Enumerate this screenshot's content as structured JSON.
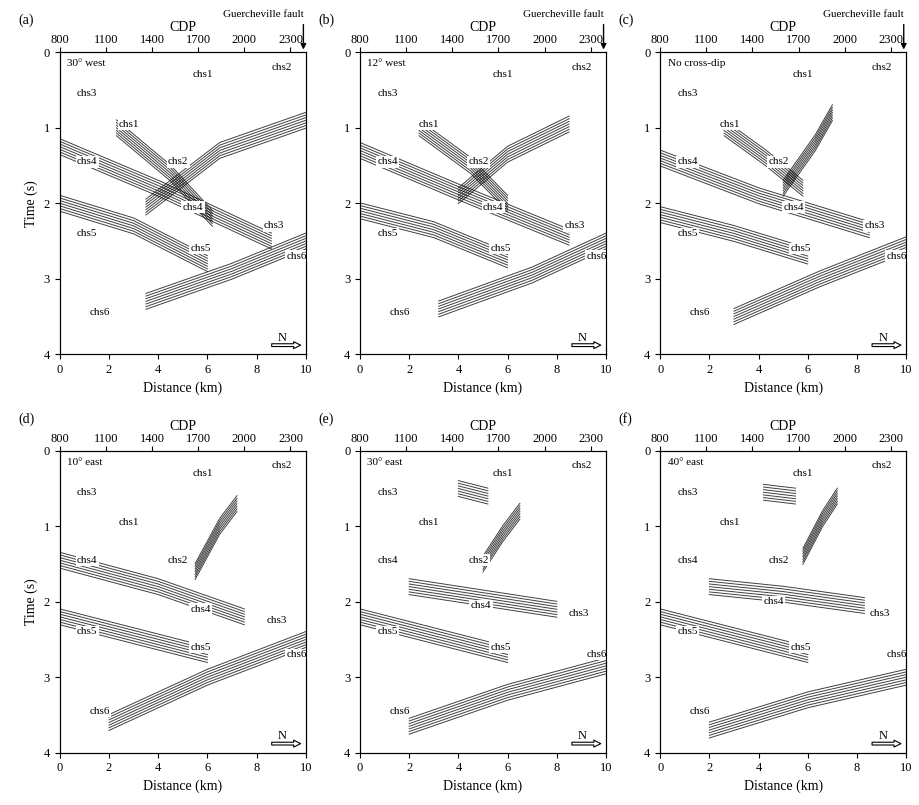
{
  "chart_data": [
    {
      "type": "line",
      "title": "(a)",
      "xlabel": "Distance (km)",
      "ylabel": "Time (s)",
      "x2label": "CDP",
      "xlim": [
        0,
        10
      ],
      "xticks": [
        0,
        2,
        4,
        6,
        8,
        10
      ],
      "ylim": [
        4,
        0
      ],
      "yticks": [
        0,
        1,
        2,
        3,
        4
      ],
      "x2lim": [
        800,
        2400
      ],
      "x2ticks": [
        800,
        1100,
        1400,
        1700,
        2000,
        2300
      ],
      "color": "#000000",
      "north_arrow": "N",
      "annotations": [
        {
          "text": "30° west",
          "x": 0.3,
          "y": 0.15
        },
        {
          "text": "Guercheville fault",
          "x": 9.9,
          "y": 0,
          "arrow": true
        },
        {
          "text": "chs1",
          "x": 5.4,
          "y": 0.3
        },
        {
          "text": "chs2",
          "x": 8.6,
          "y": 0.2
        },
        {
          "text": "chs3",
          "x": 0.7,
          "y": 0.55
        },
        {
          "text": "chs1",
          "x": 2.4,
          "y": 0.95
        },
        {
          "text": "chs4",
          "x": 0.7,
          "y": 1.45
        },
        {
          "text": "chs2",
          "x": 4.4,
          "y": 1.45
        },
        {
          "text": "chs4",
          "x": 5.0,
          "y": 2.05
        },
        {
          "text": "chs3",
          "x": 8.3,
          "y": 2.3
        },
        {
          "text": "chs5",
          "x": 0.7,
          "y": 2.4
        },
        {
          "text": "chs5",
          "x": 5.3,
          "y": 2.6
        },
        {
          "text": "chs6",
          "x": 9.2,
          "y": 2.7
        },
        {
          "text": "chs6",
          "x": 1.2,
          "y": 3.45
        }
      ],
      "reflectors": [
        {
          "x": [
            0,
            4,
            8.6
          ],
          "y": [
            1.25,
            1.8,
            2.5
          ]
        },
        {
          "x": [
            3.5,
            6.5,
            10
          ],
          "y": [
            2.05,
            1.3,
            0.9
          ]
        },
        {
          "x": [
            2.3,
            4.5,
            6.2
          ],
          "y": [
            1.0,
            1.6,
            2.2
          ]
        },
        {
          "x": [
            0,
            3,
            6
          ],
          "y": [
            2.0,
            2.3,
            2.8
          ]
        },
        {
          "x": [
            3.5,
            7,
            10
          ],
          "y": [
            3.3,
            2.9,
            2.5
          ]
        }
      ]
    },
    {
      "type": "line",
      "title": "(b)",
      "xlabel": "Distance (km)",
      "x2label": "CDP",
      "xlim": [
        0,
        10
      ],
      "xticks": [
        0,
        2,
        4,
        6,
        8,
        10
      ],
      "ylim": [
        4,
        0
      ],
      "yticks": [
        0,
        1,
        2,
        3,
        4
      ],
      "x2lim": [
        800,
        2400
      ],
      "x2ticks": [
        800,
        1100,
        1400,
        1700,
        2000,
        2300
      ],
      "color": "#000000",
      "north_arrow": "N",
      "annotations": [
        {
          "text": "12° west",
          "x": 0.3,
          "y": 0.15
        },
        {
          "text": "Guercheville fault",
          "x": 9.9,
          "y": 0,
          "arrow": true
        },
        {
          "text": "chs1",
          "x": 5.4,
          "y": 0.3
        },
        {
          "text": "chs2",
          "x": 8.6,
          "y": 0.2
        },
        {
          "text": "chs3",
          "x": 0.7,
          "y": 0.55
        },
        {
          "text": "chs1",
          "x": 2.4,
          "y": 0.95
        },
        {
          "text": "chs4",
          "x": 0.7,
          "y": 1.45
        },
        {
          "text": "chs2",
          "x": 4.4,
          "y": 1.45
        },
        {
          "text": "chs4",
          "x": 5.0,
          "y": 2.05
        },
        {
          "text": "chs3",
          "x": 8.3,
          "y": 2.3
        },
        {
          "text": "chs5",
          "x": 0.7,
          "y": 2.4
        },
        {
          "text": "chs5",
          "x": 5.3,
          "y": 2.6
        },
        {
          "text": "chs6",
          "x": 9.2,
          "y": 2.7
        },
        {
          "text": "chs6",
          "x": 1.2,
          "y": 3.45
        }
      ],
      "reflectors": [
        {
          "x": [
            0,
            4,
            8.5
          ],
          "y": [
            1.3,
            1.85,
            2.45
          ]
        },
        {
          "x": [
            4,
            6,
            8.5
          ],
          "y": [
            1.9,
            1.35,
            0.95
          ]
        },
        {
          "x": [
            2.4,
            4.5,
            6.0
          ],
          "y": [
            1.0,
            1.5,
            2.0
          ]
        },
        {
          "x": [
            0,
            3,
            6
          ],
          "y": [
            2.1,
            2.35,
            2.75
          ]
        },
        {
          "x": [
            3.2,
            7,
            10
          ],
          "y": [
            3.4,
            2.95,
            2.5
          ]
        }
      ]
    },
    {
      "type": "line",
      "title": "(c)",
      "xlabel": "Distance (km)",
      "x2label": "CDP",
      "xlim": [
        0,
        10
      ],
      "xticks": [
        0,
        2,
        4,
        6,
        8,
        10
      ],
      "ylim": [
        4,
        0
      ],
      "yticks": [
        0,
        1,
        2,
        3,
        4
      ],
      "x2lim": [
        800,
        2400
      ],
      "x2ticks": [
        800,
        1100,
        1400,
        1700,
        2000,
        2300
      ],
      "color": "#000000",
      "north_arrow": "N",
      "annotations": [
        {
          "text": "No cross-dip",
          "x": 0.3,
          "y": 0.15
        },
        {
          "text": "Guercheville fault",
          "x": 9.9,
          "y": 0,
          "arrow": true
        },
        {
          "text": "chs1",
          "x": 5.4,
          "y": 0.3
        },
        {
          "text": "chs2",
          "x": 8.6,
          "y": 0.2
        },
        {
          "text": "chs3",
          "x": 0.7,
          "y": 0.55
        },
        {
          "text": "chs1",
          "x": 2.4,
          "y": 0.95
        },
        {
          "text": "chs4",
          "x": 0.7,
          "y": 1.45
        },
        {
          "text": "chs2",
          "x": 4.4,
          "y": 1.45
        },
        {
          "text": "chs4",
          "x": 5.0,
          "y": 2.05
        },
        {
          "text": "chs3",
          "x": 8.3,
          "y": 2.3
        },
        {
          "text": "chs5",
          "x": 0.7,
          "y": 2.4
        },
        {
          "text": "chs5",
          "x": 5.3,
          "y": 2.6
        },
        {
          "text": "chs6",
          "x": 9.2,
          "y": 2.7
        },
        {
          "text": "chs6",
          "x": 1.2,
          "y": 3.45
        }
      ],
      "reflectors": [
        {
          "x": [
            0,
            4,
            8.5
          ],
          "y": [
            1.4,
            1.9,
            2.35
          ]
        },
        {
          "x": [
            5,
            6.3,
            7
          ],
          "y": [
            1.8,
            1.2,
            0.8
          ]
        },
        {
          "x": [
            2.6,
            4.3,
            5.8
          ],
          "y": [
            1.0,
            1.4,
            1.8
          ]
        },
        {
          "x": [
            0,
            3,
            6
          ],
          "y": [
            2.15,
            2.4,
            2.7
          ]
        },
        {
          "x": [
            3,
            6.5,
            10
          ],
          "y": [
            3.5,
            3.0,
            2.55
          ]
        }
      ]
    },
    {
      "type": "line",
      "title": "(d)",
      "xlabel": "Distance (km)",
      "ylabel": "Time (s)",
      "x2label": "CDP",
      "xlim": [
        0,
        10
      ],
      "xticks": [
        0,
        2,
        4,
        6,
        8,
        10
      ],
      "ylim": [
        4,
        0
      ],
      "yticks": [
        0,
        1,
        2,
        3,
        4
      ],
      "x2lim": [
        800,
        2400
      ],
      "x2ticks": [
        800,
        1100,
        1400,
        1700,
        2000,
        2300
      ],
      "color": "#000000",
      "north_arrow": "N",
      "annotations": [
        {
          "text": "10° east",
          "x": 0.3,
          "y": 0.15
        },
        {
          "text": "chs1",
          "x": 5.4,
          "y": 0.3
        },
        {
          "text": "chs2",
          "x": 8.6,
          "y": 0.2
        },
        {
          "text": "chs3",
          "x": 0.7,
          "y": 0.55
        },
        {
          "text": "chs1",
          "x": 2.4,
          "y": 0.95
        },
        {
          "text": "chs4",
          "x": 0.7,
          "y": 1.45
        },
        {
          "text": "chs2",
          "x": 4.4,
          "y": 1.45
        },
        {
          "text": "chs4",
          "x": 5.3,
          "y": 2.1
        },
        {
          "text": "chs3",
          "x": 8.4,
          "y": 2.25
        },
        {
          "text": "chs5",
          "x": 0.7,
          "y": 2.4
        },
        {
          "text": "chs5",
          "x": 5.3,
          "y": 2.6
        },
        {
          "text": "chs6",
          "x": 9.2,
          "y": 2.7
        },
        {
          "text": "chs6",
          "x": 1.2,
          "y": 3.45
        }
      ],
      "reflectors": [
        {
          "x": [
            0,
            4,
            7.5
          ],
          "y": [
            1.45,
            1.8,
            2.2
          ]
        },
        {
          "x": [
            5.5,
            6.5,
            7.2
          ],
          "y": [
            1.6,
            1.0,
            0.7
          ]
        },
        {
          "x": [
            0,
            3,
            6
          ],
          "y": [
            2.2,
            2.45,
            2.7
          ]
        },
        {
          "x": [
            2,
            6,
            10
          ],
          "y": [
            3.6,
            3.0,
            2.5
          ]
        }
      ]
    },
    {
      "type": "line",
      "title": "(e)",
      "xlabel": "Distance (km)",
      "x2label": "CDP",
      "xlim": [
        0,
        10
      ],
      "xticks": [
        0,
        2,
        4,
        6,
        8,
        10
      ],
      "ylim": [
        4,
        0
      ],
      "yticks": [
        0,
        1,
        2,
        3,
        4
      ],
      "x2lim": [
        800,
        2400
      ],
      "x2ticks": [
        800,
        1100,
        1400,
        1700,
        2000,
        2300
      ],
      "color": "#000000",
      "north_arrow": "N",
      "annotations": [
        {
          "text": "30° east",
          "x": 0.3,
          "y": 0.15
        },
        {
          "text": "chs1",
          "x": 5.4,
          "y": 0.3
        },
        {
          "text": "chs2",
          "x": 8.6,
          "y": 0.2
        },
        {
          "text": "chs3",
          "x": 0.7,
          "y": 0.55
        },
        {
          "text": "chs1",
          "x": 2.4,
          "y": 0.95
        },
        {
          "text": "chs4",
          "x": 0.7,
          "y": 1.45
        },
        {
          "text": "chs2",
          "x": 4.4,
          "y": 1.45
        },
        {
          "text": "chs4",
          "x": 4.5,
          "y": 2.05
        },
        {
          "text": "chs3",
          "x": 8.5,
          "y": 2.15
        },
        {
          "text": "chs5",
          "x": 0.7,
          "y": 2.4
        },
        {
          "text": "chs5",
          "x": 5.3,
          "y": 2.6
        },
        {
          "text": "chs6",
          "x": 9.2,
          "y": 2.7
        },
        {
          "text": "chs6",
          "x": 1.2,
          "y": 3.45
        }
      ],
      "reflectors": [
        {
          "x": [
            2,
            5,
            8
          ],
          "y": [
            1.8,
            1.95,
            2.1
          ]
        },
        {
          "x": [
            5,
            5.8,
            6.5
          ],
          "y": [
            1.5,
            1.1,
            0.8
          ]
        },
        {
          "x": [
            4,
            5.2
          ],
          "y": [
            0.5,
            0.6
          ]
        },
        {
          "x": [
            0,
            3,
            6
          ],
          "y": [
            2.2,
            2.45,
            2.7
          ]
        },
        {
          "x": [
            2,
            6,
            10
          ],
          "y": [
            3.65,
            3.2,
            2.85
          ]
        }
      ]
    },
    {
      "type": "line",
      "title": "(f)",
      "xlabel": "Distance (km)",
      "x2label": "CDP",
      "xlim": [
        0,
        10
      ],
      "xticks": [
        0,
        2,
        4,
        6,
        8,
        10
      ],
      "ylim": [
        4,
        0
      ],
      "yticks": [
        0,
        1,
        2,
        3,
        4
      ],
      "x2lim": [
        800,
        2400
      ],
      "x2ticks": [
        800,
        1100,
        1400,
        1700,
        2000,
        2300
      ],
      "color": "#000000",
      "north_arrow": "N",
      "annotations": [
        {
          "text": "40° east",
          "x": 0.3,
          "y": 0.15
        },
        {
          "text": "chs1",
          "x": 5.4,
          "y": 0.3
        },
        {
          "text": "chs2",
          "x": 8.6,
          "y": 0.2
        },
        {
          "text": "chs3",
          "x": 0.7,
          "y": 0.55
        },
        {
          "text": "chs1",
          "x": 2.4,
          "y": 0.95
        },
        {
          "text": "chs4",
          "x": 0.7,
          "y": 1.45
        },
        {
          "text": "chs2",
          "x": 4.4,
          "y": 1.45
        },
        {
          "text": "chs4",
          "x": 4.2,
          "y": 2.0
        },
        {
          "text": "chs3",
          "x": 8.5,
          "y": 2.15
        },
        {
          "text": "chs5",
          "x": 0.7,
          "y": 2.4
        },
        {
          "text": "chs5",
          "x": 5.3,
          "y": 2.6
        },
        {
          "text": "chs6",
          "x": 9.2,
          "y": 2.7
        },
        {
          "text": "chs6",
          "x": 1.2,
          "y": 3.45
        }
      ],
      "reflectors": [
        {
          "x": [
            2,
            5,
            8.3
          ],
          "y": [
            1.8,
            1.9,
            2.05
          ]
        },
        {
          "x": [
            5.8,
            6.6,
            7.2
          ],
          "y": [
            1.4,
            0.9,
            0.6
          ]
        },
        {
          "x": [
            4.2,
            5.5
          ],
          "y": [
            0.55,
            0.6
          ]
        },
        {
          "x": [
            0,
            3,
            6
          ],
          "y": [
            2.2,
            2.45,
            2.7
          ]
        },
        {
          "x": [
            2,
            6,
            10
          ],
          "y": [
            3.7,
            3.3,
            3.0
          ]
        }
      ]
    }
  ]
}
